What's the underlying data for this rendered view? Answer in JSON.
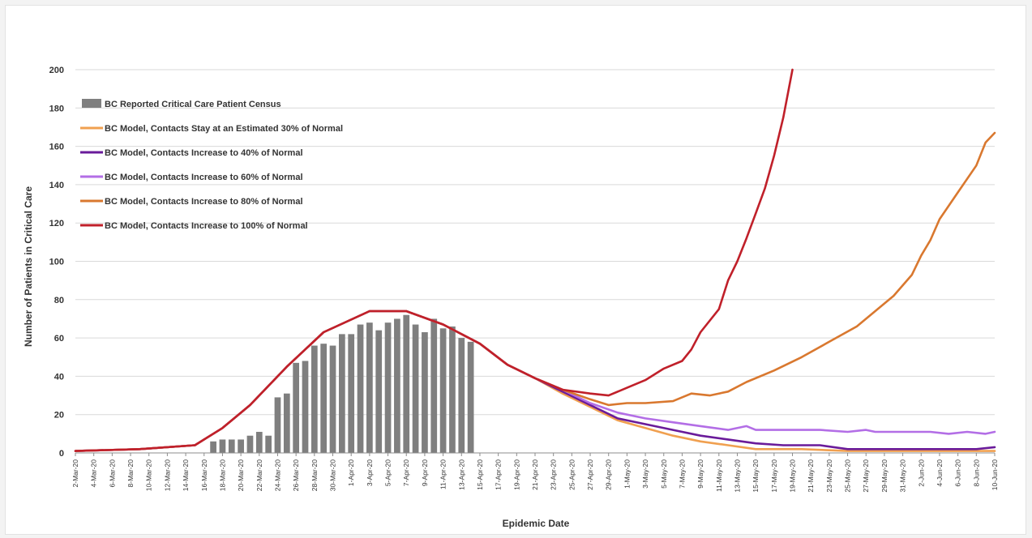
{
  "chart_data": {
    "type": "bar+line",
    "title": "",
    "xlabel": "Epidemic Date",
    "ylabel": "Number of Patients in Critical Care",
    "ylim": [
      0,
      200
    ],
    "yticks": [
      0,
      20,
      40,
      60,
      80,
      100,
      120,
      140,
      160,
      180,
      200
    ],
    "grid": "horizontal",
    "legend_position": "top-left",
    "start_date": "2020-03-02",
    "end_date": "2020-06-10",
    "x_tick_labels": [
      "2-Mar-20",
      "4-Mar-20",
      "6-Mar-20",
      "8-Mar-20",
      "10-Mar-20",
      "12-Mar-20",
      "14-Mar-20",
      "16-Mar-20",
      "18-Mar-20",
      "20-Mar-20",
      "22-Mar-20",
      "24-Mar-20",
      "26-Mar-20",
      "28-Mar-20",
      "30-Mar-20",
      "1-Apr-20",
      "3-Apr-20",
      "5-Apr-20",
      "7-Apr-20",
      "9-Apr-20",
      "11-Apr-20",
      "13-Apr-20",
      "15-Apr-20",
      "17-Apr-20",
      "19-Apr-20",
      "21-Apr-20",
      "23-Apr-20",
      "25-Apr-20",
      "27-Apr-20",
      "29-Apr-20",
      "1-May-20",
      "3-May-20",
      "5-May-20",
      "7-May-20",
      "9-May-20",
      "11-May-20",
      "13-May-20",
      "15-May-20",
      "17-May-20",
      "19-May-20",
      "21-May-20",
      "23-May-20",
      "25-May-20",
      "27-May-20",
      "29-May-20",
      "31-May-20",
      "2-Jun-20",
      "4-Jun-20",
      "6-Jun-20",
      "8-Jun-20",
      "10-Jun-20"
    ],
    "bars": {
      "name": "BC Reported Critical Care Patient Census",
      "color": "#7f7f7f",
      "points": [
        [
          "2020-03-17",
          6
        ],
        [
          "2020-03-18",
          7
        ],
        [
          "2020-03-19",
          7
        ],
        [
          "2020-03-20",
          7
        ],
        [
          "2020-03-21",
          9
        ],
        [
          "2020-03-22",
          11
        ],
        [
          "2020-03-23",
          9
        ],
        [
          "2020-03-24",
          29
        ],
        [
          "2020-03-25",
          31
        ],
        [
          "2020-03-26",
          47
        ],
        [
          "2020-03-27",
          48
        ],
        [
          "2020-03-28",
          56
        ],
        [
          "2020-03-29",
          57
        ],
        [
          "2020-03-30",
          56
        ],
        [
          "2020-03-31",
          62
        ],
        [
          "2020-04-01",
          62
        ],
        [
          "2020-04-02",
          67
        ],
        [
          "2020-04-03",
          68
        ],
        [
          "2020-04-04",
          64
        ],
        [
          "2020-04-05",
          68
        ],
        [
          "2020-04-06",
          70
        ],
        [
          "2020-04-07",
          72
        ],
        [
          "2020-04-08",
          67
        ],
        [
          "2020-04-09",
          63
        ],
        [
          "2020-04-10",
          70
        ],
        [
          "2020-04-11",
          65
        ],
        [
          "2020-04-12",
          66
        ],
        [
          "2020-04-13",
          60
        ],
        [
          "2020-04-14",
          58
        ]
      ]
    },
    "series": [
      {
        "name": "BC Model, Contacts Stay at an Estimated 30% of Normal",
        "color": "#f0a050",
        "points": [
          [
            "2020-03-02",
            1
          ],
          [
            "2020-03-09",
            2
          ],
          [
            "2020-03-15",
            4
          ],
          [
            "2020-03-18",
            13
          ],
          [
            "2020-03-21",
            25
          ],
          [
            "2020-03-25",
            45
          ],
          [
            "2020-03-29",
            63
          ],
          [
            "2020-04-03",
            74
          ],
          [
            "2020-04-07",
            74
          ],
          [
            "2020-04-11",
            67
          ],
          [
            "2020-04-15",
            57
          ],
          [
            "2020-04-18",
            46
          ],
          [
            "2020-04-21",
            39
          ],
          [
            "2020-04-24",
            31
          ],
          [
            "2020-04-27",
            24
          ],
          [
            "2020-04-30",
            17
          ],
          [
            "2020-05-03",
            13
          ],
          [
            "2020-05-06",
            9
          ],
          [
            "2020-05-09",
            6
          ],
          [
            "2020-05-12",
            4
          ],
          [
            "2020-05-15",
            2
          ],
          [
            "2020-05-20",
            2
          ],
          [
            "2020-05-25",
            1
          ],
          [
            "2020-06-10",
            1
          ]
        ]
      },
      {
        "name": "BC Model, Contacts Increase to 40% of Normal",
        "color": "#6a1b9a",
        "points": [
          [
            "2020-03-02",
            1
          ],
          [
            "2020-03-09",
            2
          ],
          [
            "2020-03-15",
            4
          ],
          [
            "2020-03-18",
            13
          ],
          [
            "2020-03-21",
            25
          ],
          [
            "2020-03-25",
            45
          ],
          [
            "2020-03-29",
            63
          ],
          [
            "2020-04-03",
            74
          ],
          [
            "2020-04-07",
            74
          ],
          [
            "2020-04-11",
            67
          ],
          [
            "2020-04-15",
            57
          ],
          [
            "2020-04-18",
            46
          ],
          [
            "2020-04-21",
            39
          ],
          [
            "2020-04-24",
            32
          ],
          [
            "2020-04-27",
            25
          ],
          [
            "2020-04-30",
            18
          ],
          [
            "2020-05-03",
            15
          ],
          [
            "2020-05-06",
            12
          ],
          [
            "2020-05-09",
            9
          ],
          [
            "2020-05-12",
            7
          ],
          [
            "2020-05-15",
            5
          ],
          [
            "2020-05-18",
            4
          ],
          [
            "2020-05-22",
            4
          ],
          [
            "2020-05-25",
            2
          ],
          [
            "2020-06-08",
            2
          ],
          [
            "2020-06-10",
            3
          ]
        ]
      },
      {
        "name": "BC Model, Contacts Increase to 60% of Normal",
        "color": "#b36ee6",
        "points": [
          [
            "2020-03-02",
            1
          ],
          [
            "2020-03-09",
            2
          ],
          [
            "2020-03-15",
            4
          ],
          [
            "2020-03-18",
            13
          ],
          [
            "2020-03-21",
            25
          ],
          [
            "2020-03-25",
            45
          ],
          [
            "2020-03-29",
            63
          ],
          [
            "2020-04-03",
            74
          ],
          [
            "2020-04-07",
            74
          ],
          [
            "2020-04-11",
            67
          ],
          [
            "2020-04-15",
            57
          ],
          [
            "2020-04-18",
            46
          ],
          [
            "2020-04-21",
            39
          ],
          [
            "2020-04-24",
            33
          ],
          [
            "2020-04-27",
            26
          ],
          [
            "2020-04-30",
            21
          ],
          [
            "2020-05-03",
            18
          ],
          [
            "2020-05-06",
            16
          ],
          [
            "2020-05-09",
            14
          ],
          [
            "2020-05-12",
            12
          ],
          [
            "2020-05-14",
            14
          ],
          [
            "2020-05-15",
            12
          ],
          [
            "2020-05-22",
            12
          ],
          [
            "2020-05-25",
            11
          ],
          [
            "2020-05-27",
            12
          ],
          [
            "2020-05-28",
            11
          ],
          [
            "2020-06-03",
            11
          ],
          [
            "2020-06-05",
            10
          ],
          [
            "2020-06-07",
            11
          ],
          [
            "2020-06-09",
            10
          ],
          [
            "2020-06-10",
            11
          ]
        ]
      },
      {
        "name": "BC Model, Contacts Increase to 80% of Normal",
        "color": "#d9782f",
        "points": [
          [
            "2020-03-02",
            1
          ],
          [
            "2020-03-09",
            2
          ],
          [
            "2020-03-15",
            4
          ],
          [
            "2020-03-18",
            13
          ],
          [
            "2020-03-21",
            25
          ],
          [
            "2020-03-25",
            45
          ],
          [
            "2020-03-29",
            63
          ],
          [
            "2020-04-03",
            74
          ],
          [
            "2020-04-07",
            74
          ],
          [
            "2020-04-11",
            67
          ],
          [
            "2020-04-15",
            57
          ],
          [
            "2020-04-18",
            46
          ],
          [
            "2020-04-21",
            39
          ],
          [
            "2020-04-24",
            33
          ],
          [
            "2020-04-27",
            28
          ],
          [
            "2020-04-29",
            25
          ],
          [
            "2020-05-01",
            26
          ],
          [
            "2020-05-03",
            26
          ],
          [
            "2020-05-06",
            27
          ],
          [
            "2020-05-08",
            31
          ],
          [
            "2020-05-10",
            30
          ],
          [
            "2020-05-12",
            32
          ],
          [
            "2020-05-14",
            37
          ],
          [
            "2020-05-17",
            43
          ],
          [
            "2020-05-20",
            50
          ],
          [
            "2020-05-23",
            58
          ],
          [
            "2020-05-26",
            66
          ],
          [
            "2020-05-28",
            74
          ],
          [
            "2020-05-30",
            82
          ],
          [
            "2020-06-01",
            93
          ],
          [
            "2020-06-02",
            103
          ],
          [
            "2020-06-03",
            111
          ],
          [
            "2020-06-04",
            122
          ],
          [
            "2020-06-06",
            136
          ],
          [
            "2020-06-08",
            150
          ],
          [
            "2020-06-09",
            162
          ],
          [
            "2020-06-10",
            167
          ]
        ]
      },
      {
        "name": "BC Model, Contacts Increase to 100% of Normal",
        "color": "#c0202a",
        "points": [
          [
            "2020-03-02",
            1
          ],
          [
            "2020-03-09",
            2
          ],
          [
            "2020-03-15",
            4
          ],
          [
            "2020-03-18",
            13
          ],
          [
            "2020-03-21",
            25
          ],
          [
            "2020-03-25",
            45
          ],
          [
            "2020-03-29",
            63
          ],
          [
            "2020-04-03",
            74
          ],
          [
            "2020-04-07",
            74
          ],
          [
            "2020-04-11",
            67
          ],
          [
            "2020-04-15",
            57
          ],
          [
            "2020-04-18",
            46
          ],
          [
            "2020-04-21",
            39
          ],
          [
            "2020-04-24",
            33
          ],
          [
            "2020-04-27",
            31
          ],
          [
            "2020-04-29",
            30
          ],
          [
            "2020-05-01",
            34
          ],
          [
            "2020-05-03",
            38
          ],
          [
            "2020-05-05",
            44
          ],
          [
            "2020-05-07",
            48
          ],
          [
            "2020-05-08",
            54
          ],
          [
            "2020-05-09",
            63
          ],
          [
            "2020-05-11",
            75
          ],
          [
            "2020-05-12",
            90
          ],
          [
            "2020-05-13",
            100
          ],
          [
            "2020-05-14",
            112
          ],
          [
            "2020-05-15",
            125
          ],
          [
            "2020-05-16",
            138
          ],
          [
            "2020-05-17",
            155
          ],
          [
            "2020-05-18",
            175
          ],
          [
            "2020-05-19",
            200
          ]
        ]
      }
    ]
  }
}
